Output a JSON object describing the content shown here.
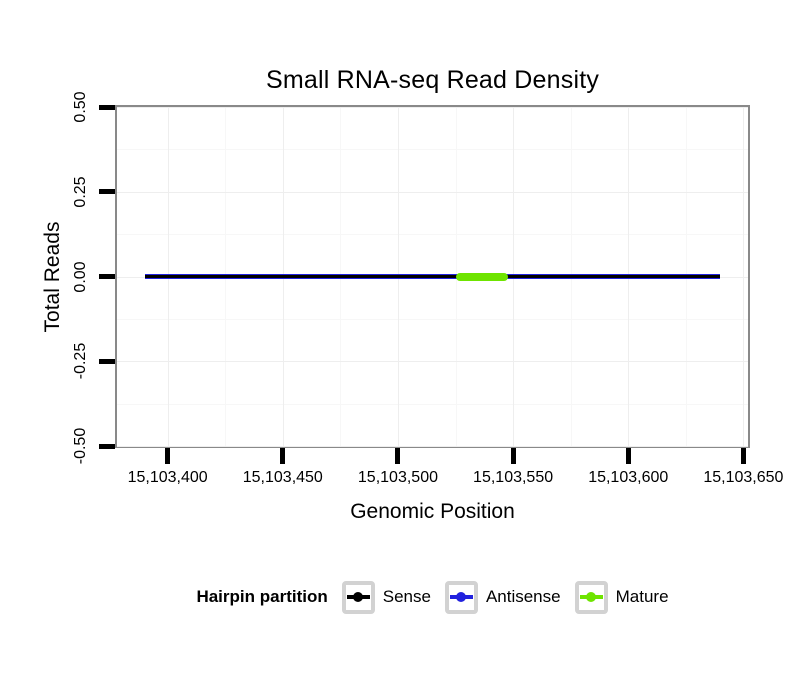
{
  "chart_data": {
    "type": "line",
    "title": "Small RNA-seq Read Density",
    "xlabel": "Genomic Position",
    "ylabel": "Total Reads",
    "xlim": [
      15103378,
      15103652
    ],
    "ylim": [
      -0.5,
      0.5
    ],
    "grid": "major+minor",
    "panel_border_color": "#898989",
    "grid_major_color": "#eeeeee",
    "grid_minor_color": "#f7f7f7",
    "x_ticks": [
      {
        "value": 15103400,
        "label": "15,103,400"
      },
      {
        "value": 15103450,
        "label": "15,103,450"
      },
      {
        "value": 15103500,
        "label": "15,103,500"
      },
      {
        "value": 15103550,
        "label": "15,103,550"
      },
      {
        "value": 15103600,
        "label": "15,103,600"
      },
      {
        "value": 15103650,
        "label": "15,103,650"
      }
    ],
    "y_ticks": [
      {
        "value": 0.5,
        "label": "0.50"
      },
      {
        "value": 0.25,
        "label": "0.25"
      },
      {
        "value": 0,
        "label": "0.00"
      },
      {
        "value": -0.25,
        "label": "-0.25"
      },
      {
        "value": -0.5,
        "label": "-0.50"
      }
    ],
    "series": [
      {
        "name": "Antisense",
        "color": "#2121de",
        "start": 15103390,
        "end": 15103640,
        "y": 0,
        "thickness": 5,
        "rounded": false
      },
      {
        "name": "Sense",
        "color": "#000000",
        "start": 15103390,
        "end": 15103640,
        "y": 0,
        "thickness": 3,
        "rounded": false
      },
      {
        "name": "Mature",
        "color": "#6ee400",
        "start": 15103525,
        "end": 15103548,
        "y": 0,
        "thickness": 8,
        "rounded": true
      }
    ],
    "legend": {
      "title": "Hairpin partition",
      "position": "bottom",
      "entries": [
        {
          "label": "Sense",
          "color": "#000000"
        },
        {
          "label": "Antisense",
          "color": "#2121de"
        },
        {
          "label": "Mature",
          "color": "#6ee400"
        }
      ]
    }
  }
}
